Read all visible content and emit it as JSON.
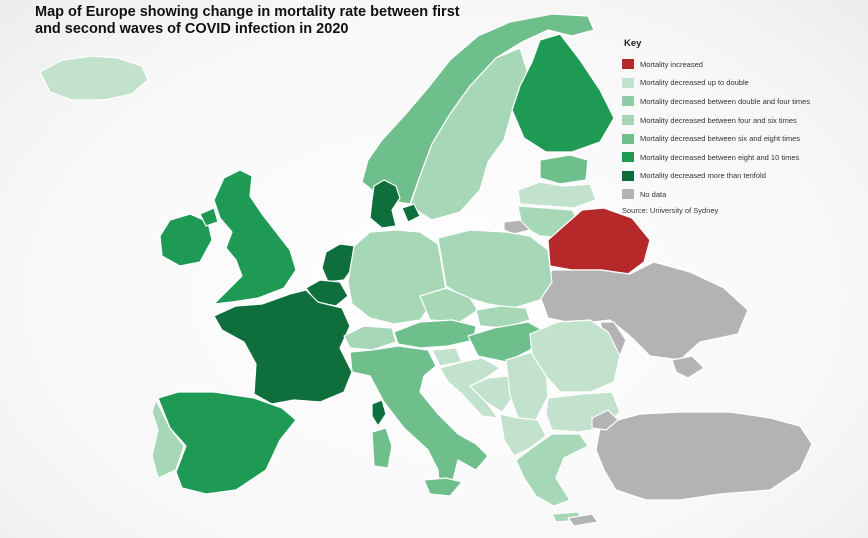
{
  "title": "Map of Europe showing change in mortality rate between first and second waves of COVID infection in 2020",
  "legend": {
    "title": "Key",
    "items": [
      {
        "id": "increased",
        "label": "Mortality increased",
        "color": "#b5292a"
      },
      {
        "id": "up_to_double",
        "label": "Mortality decreased up to double",
        "color": "#c2e2cd"
      },
      {
        "id": "double_to_four",
        "label": "Mortality decreased between double and four times",
        "color": "#8fcca6"
      },
      {
        "id": "four_to_six",
        "label": "Mortality decreased between four and six times",
        "color": "#a6d8b8"
      },
      {
        "id": "six_to_eight",
        "label": "Mortality decreased between six and eight times",
        "color": "#6fbf8d"
      },
      {
        "id": "eight_to_ten",
        "label": "Mortality decreased between eight and 10 times",
        "color": "#1e9a55"
      },
      {
        "id": "more_than_ten",
        "label": "Mortality decreased more than tenfold",
        "color": "#0e6e3c"
      },
      {
        "id": "no_data",
        "label": "No data",
        "color": "#b3b3b3"
      }
    ],
    "source": "Source: University of Sydney"
  },
  "regions": [
    {
      "name": "Iceland",
      "category": "up_to_double"
    },
    {
      "name": "Norway",
      "category": "six_to_eight"
    },
    {
      "name": "Sweden",
      "category": "four_to_six"
    },
    {
      "name": "Finland",
      "category": "eight_to_ten"
    },
    {
      "name": "Estonia",
      "category": "six_to_eight"
    },
    {
      "name": "Latvia",
      "category": "up_to_double"
    },
    {
      "name": "Lithuania",
      "category": "four_to_six"
    },
    {
      "name": "Denmark",
      "category": "more_than_ten"
    },
    {
      "name": "Ireland",
      "category": "eight_to_ten"
    },
    {
      "name": "United Kingdom",
      "category": "eight_to_ten"
    },
    {
      "name": "Netherlands",
      "category": "more_than_ten"
    },
    {
      "name": "Belgium",
      "category": "more_than_ten"
    },
    {
      "name": "France",
      "category": "more_than_ten"
    },
    {
      "name": "Spain",
      "category": "eight_to_ten"
    },
    {
      "name": "Portugal",
      "category": "four_to_six"
    },
    {
      "name": "Germany",
      "category": "four_to_six"
    },
    {
      "name": "Poland",
      "category": "four_to_six"
    },
    {
      "name": "Czech Republic",
      "category": "four_to_six"
    },
    {
      "name": "Slovakia",
      "category": "four_to_six"
    },
    {
      "name": "Austria",
      "category": "six_to_eight"
    },
    {
      "name": "Switzerland",
      "category": "four_to_six"
    },
    {
      "name": "Hungary",
      "category": "six_to_eight"
    },
    {
      "name": "Italy",
      "category": "six_to_eight"
    },
    {
      "name": "Corsica",
      "category": "more_than_ten"
    },
    {
      "name": "Slovenia",
      "category": "up_to_double"
    },
    {
      "name": "Croatia",
      "category": "up_to_double"
    },
    {
      "name": "Bosnia and Herzegovina",
      "category": "up_to_double"
    },
    {
      "name": "Serbia",
      "category": "up_to_double"
    },
    {
      "name": "Romania",
      "category": "up_to_double"
    },
    {
      "name": "Bulgaria",
      "category": "up_to_double"
    },
    {
      "name": "Greece",
      "category": "four_to_six"
    },
    {
      "name": "Belarus",
      "category": "increased"
    },
    {
      "name": "Ukraine",
      "category": "no_data"
    },
    {
      "name": "Moldova",
      "category": "no_data"
    },
    {
      "name": "Turkey",
      "category": "no_data"
    },
    {
      "name": "Kaliningrad",
      "category": "no_data"
    },
    {
      "name": "Cyprus",
      "category": "no_data"
    }
  ]
}
